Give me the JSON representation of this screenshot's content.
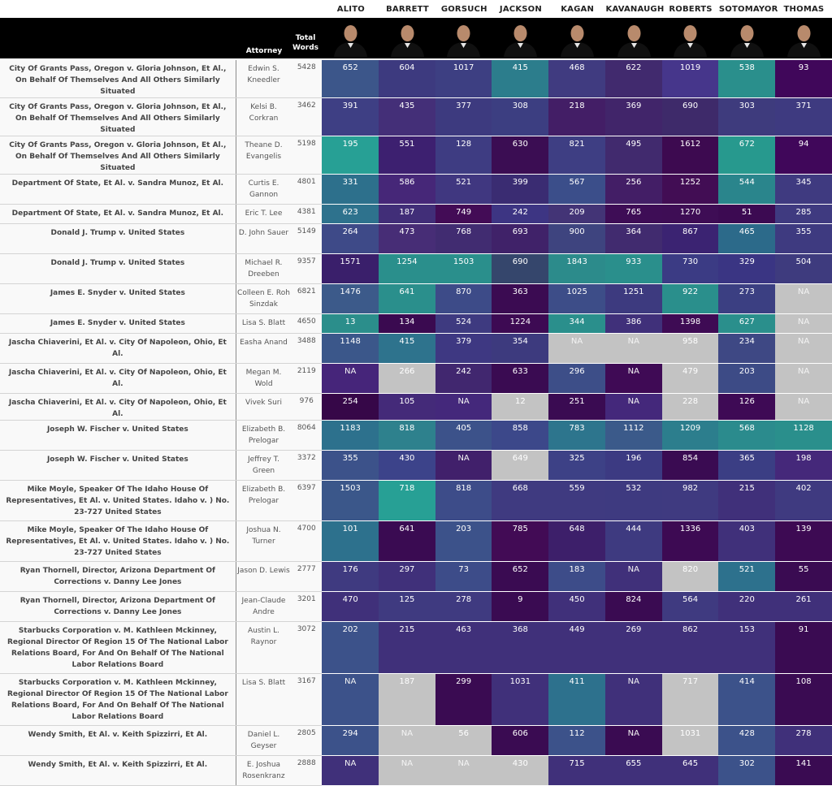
{
  "justices": [
    "ALITO",
    "BARRETT",
    "GORSUCH",
    "JACKSON",
    "KAGAN",
    "KAVANAUGH",
    "ROBERTS",
    "SOTOMAYOR",
    "THOMAS"
  ],
  "header": {
    "attorney": "Attorney",
    "total_words": "Total\nWords"
  },
  "colors": {
    "header_bg": "#000000",
    "na": "#c3c3c3",
    "low": "#3d0a52",
    "mid": "#3b4f8e",
    "high": "#2aa79a"
  },
  "rows": [
    {
      "case": "City Of Grants Pass, Oregon v. Gloria Johnson, Et Al., On Behalf Of Themselves And All Others Similarly Situated",
      "attorney": "Edwin S. Kneedler",
      "total": "5428",
      "values": [
        "652",
        "604",
        "1017",
        "415",
        "468",
        "622",
        "1019",
        "538",
        "93"
      ],
      "colors": [
        "#3c568a",
        "#3d3a7f",
        "#3d3f82",
        "#2c7d8c",
        "#403b80",
        "#412a6e",
        "#46368b",
        "#2a8f8c",
        "#40075a"
      ]
    },
    {
      "case": "City Of Grants Pass, Oregon v. Gloria Johnson, Et Al., On Behalf Of Themselves And All Others Similarly Situated",
      "attorney": "Kelsi B. Corkran",
      "total": "3462",
      "values": [
        "391",
        "435",
        "377",
        "308",
        "218",
        "369",
        "690",
        "303",
        "371"
      ],
      "colors": [
        "#3e3f84",
        "#442f78",
        "#3d3a7f",
        "#3c3e81",
        "#431e66",
        "#41256a",
        "#3e2a6a",
        "#3e3b7d",
        "#3e3a80"
      ]
    },
    {
      "case": "City Of Grants Pass, Oregon v. Gloria Johnson, Et Al., On Behalf Of Themselves And All Others Similarly Situated",
      "attorney": "Theane D. Evangelis",
      "total": "5198",
      "values": [
        "195",
        "551",
        "128",
        "630",
        "821",
        "495",
        "1612",
        "672",
        "94"
      ],
      "colors": [
        "#27a095",
        "#3d2070",
        "#3e3c82",
        "#3b0d53",
        "#3e3e83",
        "#412a6e",
        "#3d0a50",
        "#27998e",
        "#40075a"
      ]
    },
    {
      "case": "Department Of State, Et Al. v. Sandra Munoz, Et Al.",
      "attorney": "Curtis E. Gannon",
      "total": "4801",
      "values": [
        "331",
        "586",
        "521",
        "399",
        "567",
        "256",
        "1252",
        "544",
        "345"
      ],
      "colors": [
        "#2d708c",
        "#462778",
        "#403780",
        "#3a2c72",
        "#3b4e8a",
        "#431e66",
        "#420d54",
        "#2a858c",
        "#3f3a80"
      ]
    },
    {
      "case": "Department Of State, Et Al. v. Sandra Munoz, Et Al.",
      "attorney": "Eric T. Lee",
      "total": "4381",
      "values": [
        "623",
        "187",
        "749",
        "242",
        "209",
        "765",
        "1270",
        "51",
        "285"
      ],
      "colors": [
        "#2e728d",
        "#412e78",
        "#430c56",
        "#3d3583",
        "#433476",
        "#3e0d56",
        "#3e0d55",
        "#3c0a52",
        "#3f3a80"
      ]
    },
    {
      "case": "Donald J. Trump v. United States",
      "attorney": "D. John Sauer",
      "total": "5149",
      "values": [
        "264",
        "473",
        "768",
        "693",
        "900",
        "364",
        "867",
        "465",
        "355"
      ],
      "colors": [
        "#3e4a88",
        "#472d76",
        "#412c71",
        "#402269",
        "#3e447f",
        "#412b6f",
        "#3b2372",
        "#2c6a8a",
        "#3e3a80"
      ]
    },
    {
      "case": "Donald J. Trump v. United States",
      "attorney": "Michael R. Dreeben",
      "total": "9357",
      "values": [
        "1571",
        "1254",
        "1503",
        "690",
        "1843",
        "933",
        "730",
        "329",
        "504"
      ],
      "colors": [
        "#3a1f6b",
        "#2a8f8c",
        "#2a8f8c",
        "#35466c",
        "#2c8b8b",
        "#2a8f8c",
        "#3b3b84",
        "#3a3583",
        "#3e3b7e"
      ]
    },
    {
      "case": "James E. Snyder v. United States",
      "attorney": "Colleen E. Roh Sinzdak",
      "total": "6821",
      "values": [
        "1476",
        "641",
        "870",
        "363",
        "1025",
        "1251",
        "922",
        "273",
        "NA"
      ],
      "colors": [
        "#3c5a8a",
        "#2a8f8c",
        "#3d4b88",
        "#3b0b52",
        "#3d4d88",
        "#3d3a7f",
        "#2a8f8c",
        "#3b3f82",
        "#c3c3c3"
      ]
    },
    {
      "case": "James E. Snyder v. United States",
      "attorney": "Lisa S. Blatt",
      "total": "4650",
      "values": [
        "13",
        "134",
        "524",
        "1224",
        "344",
        "386",
        "1398",
        "627",
        "NA"
      ],
      "colors": [
        "#2b8e8b",
        "#3a0a50",
        "#3e3a80",
        "#3d0a53",
        "#2a8f8c",
        "#40307a",
        "#3e0b54",
        "#2a8f8c",
        "#c3c3c3"
      ]
    },
    {
      "case": "Jascha Chiaverini, Et Al. v. City Of Napoleon, Ohio, Et Al.",
      "attorney": "Easha Anand",
      "total": "3488",
      "values": [
        "1148",
        "415",
        "379",
        "354",
        "NA",
        "NA",
        "958",
        "234",
        "NA"
      ],
      "colors": [
        "#3b578a",
        "#2e738d",
        "#3e3882",
        "#3d3a7e",
        "#c3c3c3",
        "#c3c3c3",
        "#c3c3c3",
        "#3e4884",
        "#c3c3c3"
      ]
    },
    {
      "case": "Jascha Chiaverini, Et Al. v. City Of Napoleon, Ohio, Et Al.",
      "attorney": "Megan M. Wold",
      "total": "2119",
      "values": [
        "NA",
        "266",
        "242",
        "633",
        "296",
        "NA",
        "479",
        "203",
        "NA"
      ],
      "colors": [
        "#46257a",
        "#c3c3c3",
        "#41276f",
        "#3a0b52",
        "#3d4e88",
        "#3f0a55",
        "#c3c3c3",
        "#3d4b86",
        "#c3c3c3"
      ]
    },
    {
      "case": "Jascha Chiaverini, Et Al. v. City Of Napoleon, Ohio, Et Al.",
      "attorney": "Vivek Suri",
      "total": "976",
      "values": [
        "254",
        "105",
        "NA",
        "12",
        "251",
        "NA",
        "228",
        "126",
        "NA"
      ],
      "colors": [
        "#360748",
        "#442a79",
        "#44287b",
        "#c3c3c3",
        "#3a0b52",
        "#44287b",
        "#c3c3c3",
        "#3e0a55",
        "#c3c3c3"
      ]
    },
    {
      "case": "Joseph W. Fischer v. United States",
      "attorney": "Elizabeth B. Prelogar",
      "total": "8064",
      "values": [
        "1183",
        "818",
        "405",
        "858",
        "783",
        "1112",
        "1209",
        "568",
        "1128"
      ],
      "colors": [
        "#2d718d",
        "#2e818d",
        "#3c528a",
        "#3c488a",
        "#2d758d",
        "#3b5a8a",
        "#2c7e8d",
        "#2b8b8d",
        "#2a8f8c"
      ]
    },
    {
      "case": "Joseph W. Fischer v. United States",
      "attorney": "Jeffrey T. Green",
      "total": "3372",
      "values": [
        "355",
        "430",
        "NA",
        "649",
        "325",
        "196",
        "854",
        "365",
        "198"
      ],
      "colors": [
        "#3c528a",
        "#3c438a",
        "#41206b",
        "#c3c3c3",
        "#3d4186",
        "#3c3a82",
        "#3a0b52",
        "#3b3e84",
        "#45287a"
      ]
    },
    {
      "case": "Mike Moyle, Speaker Of The Idaho House Of Representatives, Et Al. v. United States. Idaho v. ) No. 23-727 United States",
      "attorney": "Elizabeth B. Prelogar",
      "total": "6397",
      "values": [
        "1503",
        "718",
        "818",
        "668",
        "559",
        "532",
        "982",
        "215",
        "402"
      ],
      "colors": [
        "#3b578a",
        "#27a095",
        "#3d4c89",
        "#3f3a80",
        "#3f3a80",
        "#3e3a80",
        "#3f3a80",
        "#40307a",
        "#3f3a80"
      ]
    },
    {
      "case": "Mike Moyle, Speaker Of The Idaho House Of Representatives, Et Al. v. United States. Idaho v. ) No. 23-727 United States",
      "attorney": "Joshua N. Turner",
      "total": "4700",
      "values": [
        "101",
        "641",
        "203",
        "785",
        "648",
        "444",
        "1336",
        "403",
        "139"
      ],
      "colors": [
        "#2d718d",
        "#3a0b52",
        "#3c528a",
        "#420b55",
        "#3d1f6a",
        "#3e3a80",
        "#3d0a53",
        "#40307a",
        "#3d0a53"
      ]
    },
    {
      "case": "Ryan Thornell, Director, Arizona Department Of Corrections v. Danny Lee Jones",
      "attorney": "Jason D. Lewis",
      "total": "2777",
      "values": [
        "176",
        "297",
        "73",
        "652",
        "183",
        "NA",
        "820",
        "521",
        "55"
      ],
      "colors": [
        "#3f3a80",
        "#40307a",
        "#3d4c89",
        "#3a0b52",
        "#3d4c89",
        "#40307a",
        "#c3c3c3",
        "#2d718d",
        "#3a0b52"
      ]
    },
    {
      "case": "Ryan Thornell, Director, Arizona Department Of Corrections v. Danny Lee Jones",
      "attorney": "Jean-Claude Andre",
      "total": "3201",
      "values": [
        "470",
        "125",
        "278",
        "9",
        "450",
        "824",
        "564",
        "220",
        "261"
      ],
      "colors": [
        "#40307a",
        "#3f3a80",
        "#3f3a80",
        "#3a0b52",
        "#40307a",
        "#3a0b52",
        "#3f3a80",
        "#40307a",
        "#40307a"
      ]
    },
    {
      "case": "Starbucks Corporation v. M. Kathleen Mckinney, Regional Director Of Region 15 Of The National Labor Relations Board, For And On Behalf Of The National Labor Relations Board",
      "attorney": "Austin L. Raynor",
      "total": "3072",
      "values": [
        "202",
        "215",
        "463",
        "368",
        "449",
        "269",
        "862",
        "153",
        "91"
      ],
      "colors": [
        "#3c528a",
        "#40307a",
        "#40307a",
        "#40307a",
        "#40307a",
        "#40307a",
        "#40307a",
        "#40307a",
        "#3a0b52"
      ]
    },
    {
      "case": "Starbucks Corporation v. M. Kathleen Mckinney, Regional Director Of Region 15 Of The National Labor Relations Board, For And On Behalf Of The National Labor Relations Board",
      "attorney": "Lisa S. Blatt",
      "total": "3167",
      "values": [
        "NA",
        "187",
        "299",
        "1031",
        "411",
        "NA",
        "717",
        "414",
        "108"
      ],
      "colors": [
        "#3c528a",
        "#c3c3c3",
        "#3a0b52",
        "#40307a",
        "#2d718d",
        "#40307a",
        "#c3c3c3",
        "#3c528a",
        "#3a0b52"
      ]
    },
    {
      "case": "Wendy Smith, Et Al. v. Keith Spizzirri, Et Al.",
      "attorney": "Daniel L. Geyser",
      "total": "2805",
      "values": [
        "294",
        "NA",
        "56",
        "606",
        "112",
        "NA",
        "1031",
        "428",
        "278"
      ],
      "colors": [
        "#3c528a",
        "#c3c3c3",
        "#c3c3c3",
        "#3a0b52",
        "#3c528a",
        "#3a0b52",
        "#c3c3c3",
        "#3c528a",
        "#40307a"
      ]
    },
    {
      "case": "Wendy Smith, Et Al. v. Keith Spizzirri, Et Al.",
      "attorney": "E. Joshua Rosenkranz",
      "total": "2888",
      "values": [
        "NA",
        "NA",
        "NA",
        "430",
        "715",
        "655",
        "645",
        "302",
        "141"
      ],
      "colors": [
        "#40307a",
        "#c3c3c3",
        "#c3c3c3",
        "#c3c3c3",
        "#40307a",
        "#40307a",
        "#40307a",
        "#3c528a",
        "#3a0b52"
      ]
    }
  ]
}
